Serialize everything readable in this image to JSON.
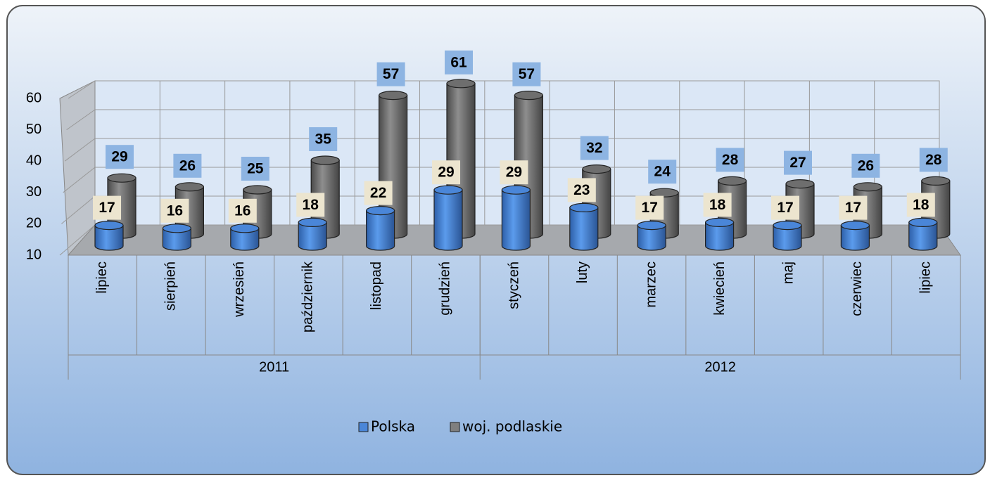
{
  "chart_data": {
    "type": "bar3d",
    "categories": [
      "lipiec",
      "sierpień",
      "wrzesień",
      "październik",
      "listopad",
      "grudzień",
      "styczeń",
      "luty",
      "marzec",
      "kwiecień",
      "maj",
      "czerwiec",
      "lipiec"
    ],
    "groups": [
      {
        "label": "2011",
        "count": 6
      },
      {
        "label": "2012",
        "count": 7
      }
    ],
    "series": [
      {
        "name": "Polska",
        "color": "#4a86d8",
        "values": [
          17,
          16,
          16,
          18,
          22,
          29,
          29,
          23,
          17,
          18,
          17,
          17,
          18
        ]
      },
      {
        "name": "woj. podlaskie",
        "color": "#7f7f7f",
        "values": [
          29,
          26,
          25,
          35,
          57,
          61,
          57,
          32,
          24,
          28,
          27,
          26,
          28
        ]
      }
    ],
    "ylim": [
      10,
      60
    ],
    "yticks": [
      10,
      20,
      30,
      40,
      50,
      60
    ],
    "grid": true,
    "legend": "bottom"
  }
}
